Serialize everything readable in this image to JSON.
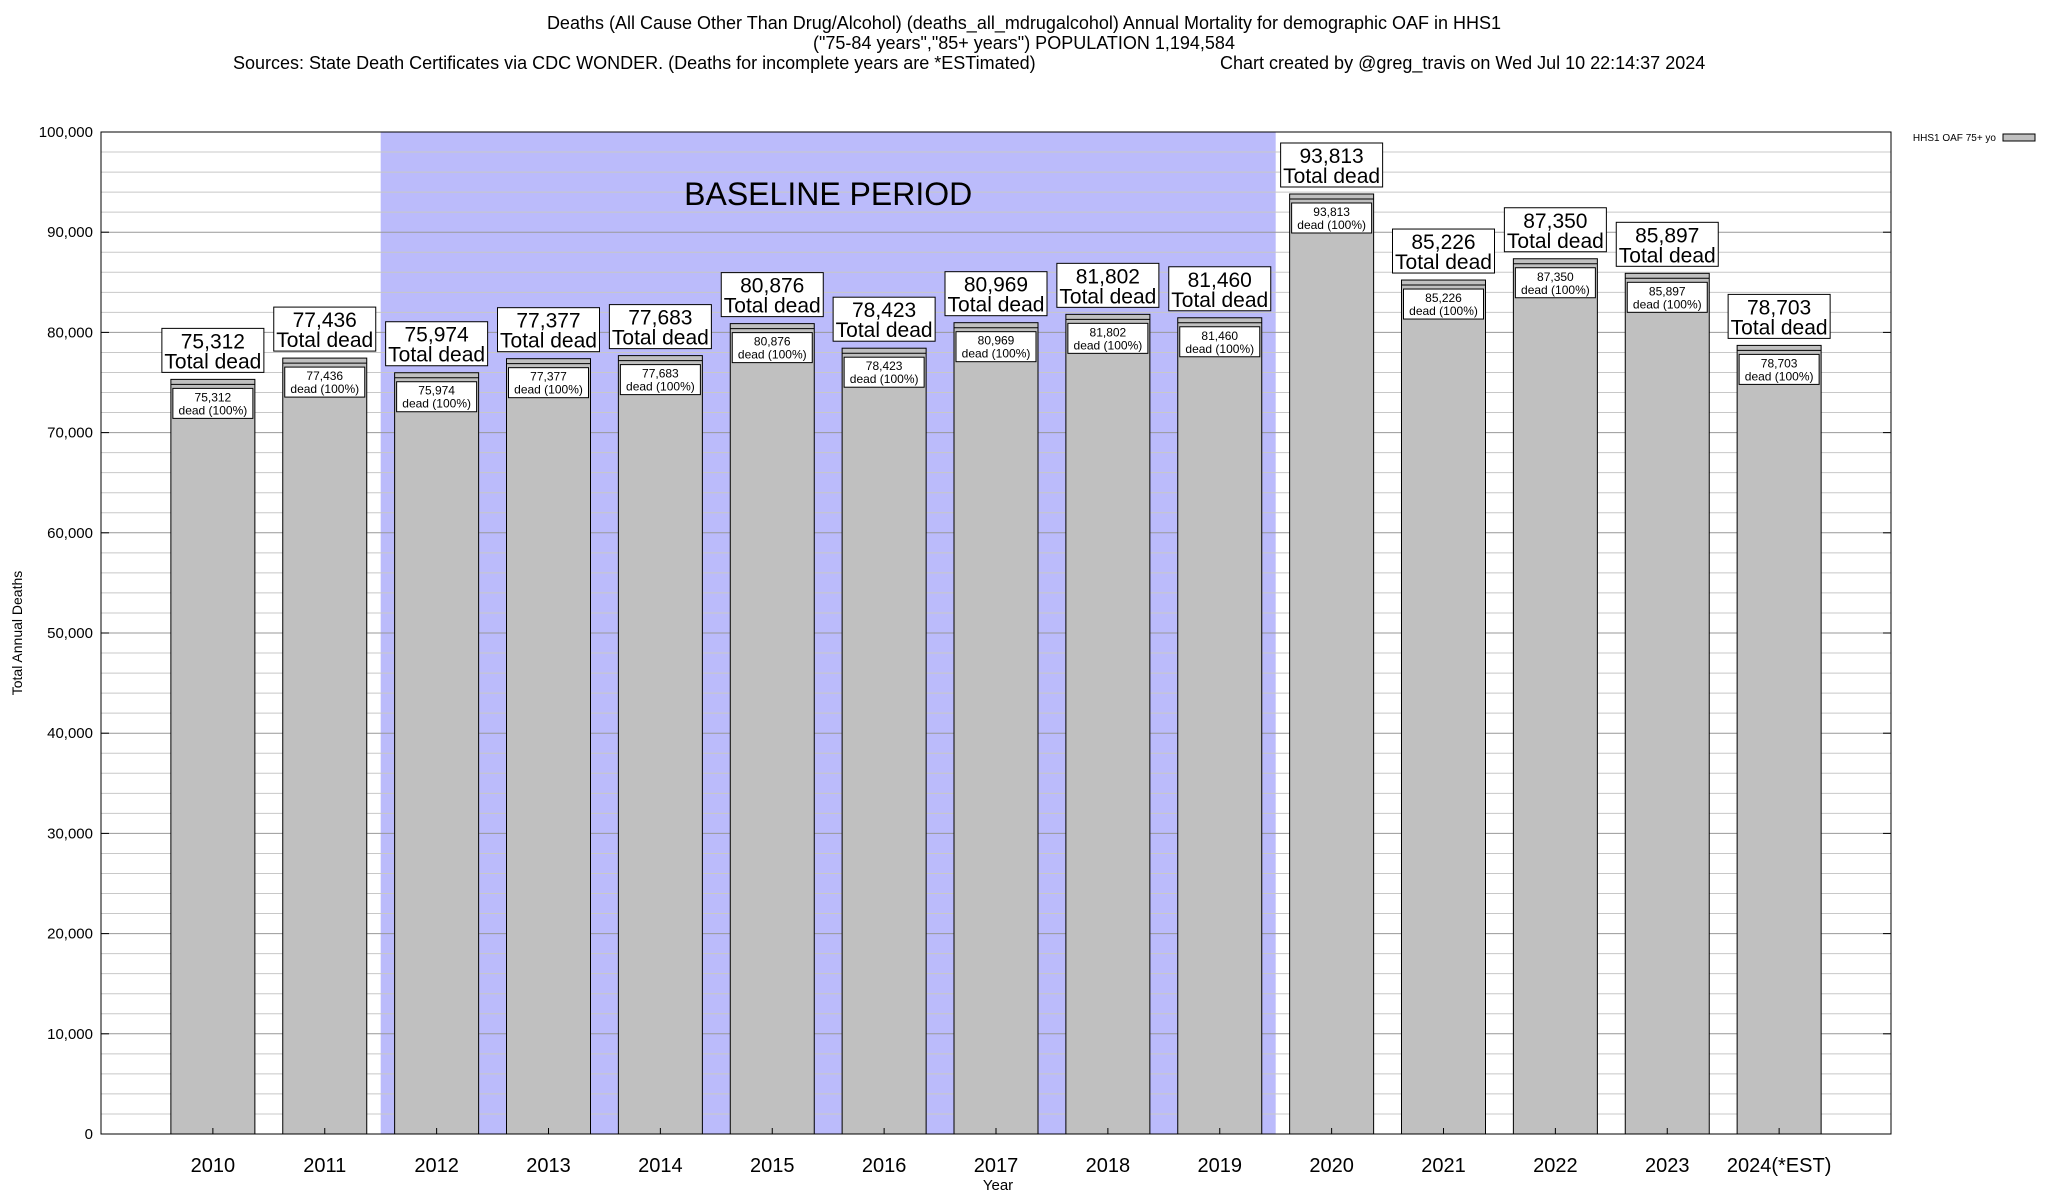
{
  "chart_data": {
    "type": "bar",
    "title_line1": "Deaths (All Cause Other Than Drug/Alcohol) (deaths_all_mdrugalcohol) Annual Mortality for demographic OAF in HHS1",
    "title_line2": "(\"75-84 years\",\"85+ years\") POPULATION 1,194,584",
    "source": "Sources: State Death Certificates via CDC WONDER. (Deaths for incomplete years are *ESTimated)",
    "credit": "Chart created by @greg_travis on Wed Jul 10 22:14:37 2024",
    "xlabel": "Year",
    "ylabel": "Total Annual Deaths",
    "ylim": [
      0,
      100000
    ],
    "yticks": [
      0,
      10000,
      20000,
      30000,
      40000,
      50000,
      60000,
      70000,
      80000,
      90000,
      100000
    ],
    "ytick_labels": [
      "0",
      "10,000",
      "20,000",
      "30,000",
      "40,000",
      "50,000",
      "60,000",
      "70,000",
      "80,000",
      "90,000",
      "100,000"
    ],
    "grid": true,
    "categories": [
      "2010",
      "2011",
      "2012",
      "2013",
      "2014",
      "2015",
      "2016",
      "2017",
      "2018",
      "2019",
      "2020",
      "2021",
      "2022",
      "2023",
      "2024(*EST)"
    ],
    "series": [
      {
        "name": "HHS1 OAF 75+ yo",
        "values": [
          75312,
          77436,
          75974,
          77377,
          77683,
          80876,
          78423,
          80969,
          81802,
          81460,
          93813,
          85226,
          87350,
          85897,
          78703
        ]
      }
    ],
    "value_labels": [
      "75,312",
      "77,436",
      "75,974",
      "77,377",
      "77,683",
      "80,876",
      "78,423",
      "80,969",
      "81,802",
      "81,460",
      "93,813",
      "85,226",
      "87,350",
      "85,897",
      "78,703"
    ],
    "total_label_suffix": "Total dead",
    "inner_label_suffix": "dead (100%)",
    "baseline": {
      "label": "BASELINE PERIOD",
      "from": "2012",
      "to": "2019"
    },
    "legend_position": "top-right",
    "colors": {
      "bar": "#c0c0c0",
      "baseline_shade": "#bbbbfb",
      "grid": "#aaaaaa"
    }
  }
}
